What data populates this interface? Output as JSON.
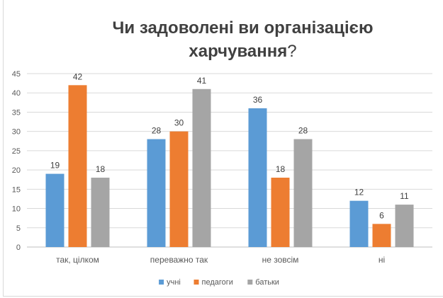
{
  "chart_data": {
    "type": "bar",
    "title_line1": "Чи задоволені ви організацією",
    "title_line2": "харчування",
    "title_suffix": "?",
    "categories": [
      "так, цілком",
      "переважно так",
      "не зовсім",
      "ні"
    ],
    "series": [
      {
        "name": "учні",
        "values": [
          19,
          28,
          36,
          12
        ],
        "color": "#5b9bd5"
      },
      {
        "name": "педагоги",
        "values": [
          42,
          30,
          18,
          6
        ],
        "color": "#ed7d31"
      },
      {
        "name": "батьки",
        "values": [
          18,
          41,
          28,
          11
        ],
        "color": "#a5a5a5"
      }
    ],
    "ylim": [
      0,
      45
    ],
    "yticks": [
      0,
      5,
      10,
      15,
      20,
      25,
      30,
      35,
      40,
      45
    ],
    "grid": true,
    "legend_position": "bottom"
  }
}
